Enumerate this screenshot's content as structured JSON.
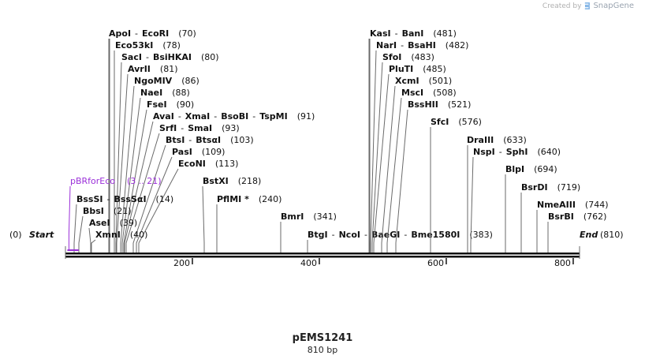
{
  "credit": {
    "text": "Created by",
    "brand": "SnapGene"
  },
  "plasmid": {
    "name": "pEMS1241",
    "size_label": "810 bp",
    "length": 810
  },
  "ends": {
    "start_label": "Start",
    "start_pos": "(0)",
    "end_label": "End",
    "end_pos": "(810)"
  },
  "ruler": {
    "ticks": [
      200,
      400,
      600,
      800
    ],
    "labels": [
      "200",
      "400",
      "600",
      "800"
    ]
  },
  "primer": {
    "name": "pBRforEco",
    "range": "(3 .. 21)",
    "start": 3,
    "end": 21,
    "color": "#9b30d9"
  },
  "colors": {
    "line": "#6a6a6a",
    "text": "#111111",
    "backbone": "#111111"
  },
  "sites": [
    {
      "names": [
        "ApoI",
        "EcoRI"
      ],
      "pos": "(70)"
    },
    {
      "names": [
        "Eco53kI"
      ],
      "pos": "(78)"
    },
    {
      "names": [
        "SacI",
        "BsiHKAI"
      ],
      "pos": "(80)"
    },
    {
      "names": [
        "AvrII"
      ],
      "pos": "(81)"
    },
    {
      "names": [
        "NgoMIV"
      ],
      "pos": "(86)"
    },
    {
      "names": [
        "NaeI"
      ],
      "pos": "(88)"
    },
    {
      "names": [
        "FseI"
      ],
      "pos": "(90)"
    },
    {
      "names": [
        "AvaI",
        "XmaI",
        "BsoBI",
        "TspMI"
      ],
      "pos": "(91)"
    },
    {
      "names": [
        "SrfI",
        "SmaI"
      ],
      "pos": "(93)"
    },
    {
      "names": [
        "BtsI",
        "BtsαI"
      ],
      "pos": "(103)"
    },
    {
      "names": [
        "PasI"
      ],
      "pos": "(109)"
    },
    {
      "names": [
        "EcoNI"
      ],
      "pos": "(113)"
    },
    {
      "names": [
        "BssSI",
        "BssSαI"
      ],
      "pos": "(14)"
    },
    {
      "names": [
        "BbsI"
      ],
      "pos": "(21)"
    },
    {
      "names": [
        "AseI"
      ],
      "pos": "(39)"
    },
    {
      "names": [
        "XmnI"
      ],
      "pos": "(40)"
    },
    {
      "names": [
        "BstXI"
      ],
      "pos": "(218)"
    },
    {
      "names": [
        "PflMI *"
      ],
      "pos": "(240)"
    },
    {
      "names": [
        "BmrI"
      ],
      "pos": "(341)"
    },
    {
      "names": [
        "BtgI",
        "NcoI",
        "BaeGI",
        "Bme1580I"
      ],
      "pos": "(383)"
    },
    {
      "names": [
        "KasI",
        "BanI"
      ],
      "pos": "(481)"
    },
    {
      "names": [
        "NarI",
        "BsaHI"
      ],
      "pos": "(482)"
    },
    {
      "names": [
        "SfoI"
      ],
      "pos": "(483)"
    },
    {
      "names": [
        "PluTI"
      ],
      "pos": "(485)"
    },
    {
      "names": [
        "XcmI"
      ],
      "pos": "(501)"
    },
    {
      "names": [
        "MscI"
      ],
      "pos": "(508)"
    },
    {
      "names": [
        "BssHII"
      ],
      "pos": "(521)"
    },
    {
      "names": [
        "SfcI"
      ],
      "pos": "(576)"
    },
    {
      "names": [
        "DraIII"
      ],
      "pos": "(633)"
    },
    {
      "names": [
        "NspI",
        "SphI"
      ],
      "pos": "(640)"
    },
    {
      "names": [
        "BlpI"
      ],
      "pos": "(694)"
    },
    {
      "names": [
        "BsrDI"
      ],
      "pos": "(719)"
    },
    {
      "names": [
        "NmeAIII"
      ],
      "pos": "(744)"
    },
    {
      "names": [
        "BsrBI"
      ],
      "pos": "(762)"
    }
  ]
}
